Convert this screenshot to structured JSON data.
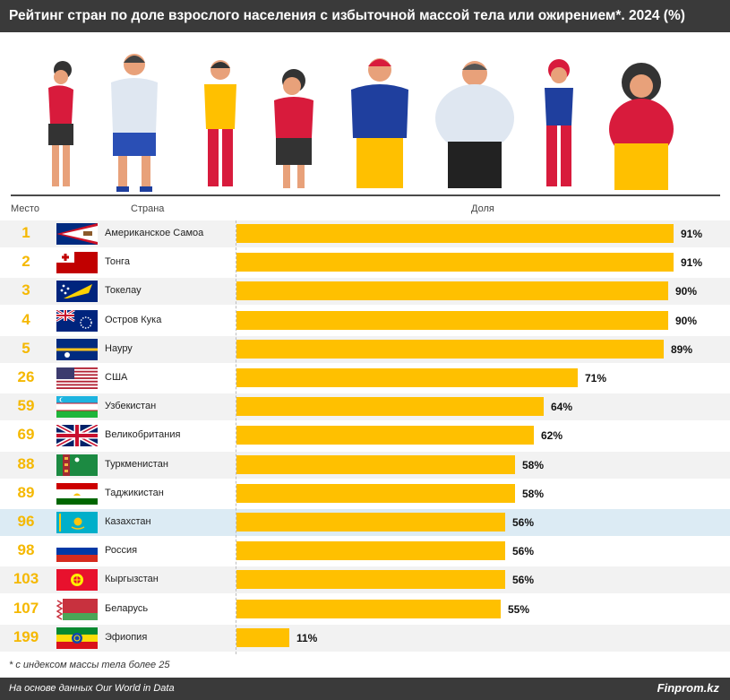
{
  "title": "Рейтинг стран по доле взрослого населения с избыточной массой тела или ожирением*. 2024 (%)",
  "columns": {
    "rank": "Место",
    "country": "Страна",
    "share": "Доля"
  },
  "chart_data": {
    "type": "bar",
    "orientation": "horizontal",
    "xlim": [
      0,
      100
    ],
    "grid": false,
    "highlight": "Казахстан",
    "rows": [
      {
        "rank": "1",
        "country": "Американское Самоа",
        "value": 91,
        "label": "91%",
        "flag": "american-samoa"
      },
      {
        "rank": "2",
        "country": "Тонга",
        "value": 91,
        "label": "91%",
        "flag": "tonga"
      },
      {
        "rank": "3",
        "country": "Токелау",
        "value": 90,
        "label": "90%",
        "flag": "tokelau"
      },
      {
        "rank": "4",
        "country": "Остров Кука",
        "value": 90,
        "label": "90%",
        "flag": "cook-islands"
      },
      {
        "rank": "5",
        "country": "Науру",
        "value": 89,
        "label": "89%",
        "flag": "nauru"
      },
      {
        "rank": "26",
        "country": "США",
        "value": 71,
        "label": "71%",
        "flag": "usa"
      },
      {
        "rank": "59",
        "country": "Узбекистан",
        "value": 64,
        "label": "64%",
        "flag": "uzbekistan"
      },
      {
        "rank": "69",
        "country": "Великобритания",
        "value": 62,
        "label": "62%",
        "flag": "uk"
      },
      {
        "rank": "88",
        "country": "Туркменистан",
        "value": 58,
        "label": "58%",
        "flag": "turkmenistan"
      },
      {
        "rank": "89",
        "country": "Таджикистан",
        "value": 58,
        "label": "58%",
        "flag": "tajikistan"
      },
      {
        "rank": "96",
        "country": "Казахстан",
        "value": 56,
        "label": "56%",
        "flag": "kazakhstan"
      },
      {
        "rank": "98",
        "country": "Россия",
        "value": 56,
        "label": "56%",
        "flag": "russia"
      },
      {
        "rank": "103",
        "country": "Кыргызстан",
        "value": 56,
        "label": "56%",
        "flag": "kyrgyzstan"
      },
      {
        "rank": "107",
        "country": "Беларусь",
        "value": 55,
        "label": "55%",
        "flag": "belarus"
      },
      {
        "rank": "199",
        "country": "Эфиопия",
        "value": 11,
        "label": "11%",
        "flag": "ethiopia"
      }
    ]
  },
  "colors": {
    "bar": "#ffc000",
    "rank": "#f5b800",
    "header": "#3a3a3a",
    "highlight_row": "#dcebf4",
    "stripe": "#f2f2f2"
  },
  "footnote": "* с индексом массы тела более 25",
  "footer": {
    "source": "На основе данных Our World in Data",
    "brand": "Finprom.kz"
  }
}
